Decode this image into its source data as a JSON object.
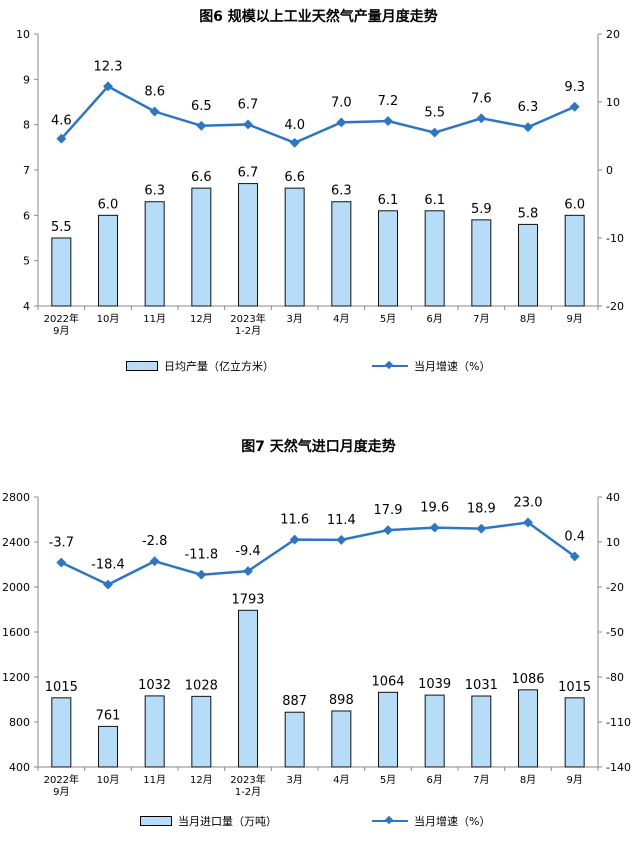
{
  "colors": {
    "bar_fill": "#b7dcf8",
    "bar_stroke": "#111111",
    "line": "#2e75c2",
    "axis": "#888888"
  },
  "chart_data": [
    {
      "type": "bar",
      "title": "图6  规模以上工业天然气产量月度走势",
      "categories": [
        "2022年\n9月",
        "10月",
        "11月",
        "12月",
        "2023年\n1-2月",
        "3月",
        "4月",
        "5月",
        "6月",
        "7月",
        "8月",
        "9月"
      ],
      "left_axis": {
        "min": 4,
        "max": 10,
        "step": 1
      },
      "right_axis": {
        "min": -20,
        "max": 20,
        "step": 10
      },
      "series": [
        {
          "name": "日均产量（亿立方米）",
          "kind": "bar",
          "axis": "left",
          "values": [
            5.5,
            6.0,
            6.3,
            6.6,
            6.7,
            6.6,
            6.3,
            6.1,
            6.1,
            5.9,
            5.8,
            6.0
          ],
          "labels": [
            "5.5",
            "6.0",
            "6.3",
            "6.6",
            "6.7",
            "6.6",
            "6.3",
            "6.1",
            "6.1",
            "5.9",
            "5.8",
            "6.0"
          ]
        },
        {
          "name": "当月增速（%）",
          "kind": "line",
          "axis": "right",
          "values": [
            4.6,
            12.3,
            8.6,
            6.5,
            6.7,
            4.0,
            7.0,
            7.2,
            5.5,
            7.6,
            6.3,
            9.3
          ],
          "labels": [
            "4.6",
            "12.3",
            "8.6",
            "6.5",
            "6.7",
            "4.0",
            "7.0",
            "7.2",
            "5.5",
            "7.6",
            "6.3",
            "9.3"
          ]
        }
      ]
    },
    {
      "type": "bar",
      "title": "图7  天然气进口月度走势",
      "categories": [
        "2022年\n9月",
        "10月",
        "11月",
        "12月",
        "2023年\n1-2月",
        "3月",
        "4月",
        "5月",
        "6月",
        "7月",
        "8月",
        "9月"
      ],
      "left_axis": {
        "min": 400,
        "max": 2800,
        "step": 400
      },
      "right_axis": {
        "min": -140,
        "max": 40,
        "step": 30,
        "ticks": [
          40,
          10,
          -20,
          -50,
          -80,
          -110,
          -140
        ]
      },
      "series": [
        {
          "name": "当月进口量（万吨）",
          "kind": "bar",
          "axis": "left",
          "values": [
            1015,
            761,
            1032,
            1028,
            1793,
            887,
            898,
            1064,
            1039,
            1031,
            1086,
            1015
          ],
          "labels": [
            "1015",
            "761",
            "1032",
            "1028",
            "1793",
            "887",
            "898",
            "1064",
            "1039",
            "1031",
            "1086",
            "1015"
          ]
        },
        {
          "name": "当月增速（%）",
          "kind": "line",
          "axis": "right",
          "values": [
            -3.7,
            -18.4,
            -2.8,
            -11.8,
            -9.4,
            11.6,
            11.4,
            17.9,
            19.6,
            18.9,
            23.0,
            0.4
          ],
          "labels": [
            "-3.7",
            "-18.4",
            "-2.8",
            "-11.8",
            "-9.4",
            "11.6",
            "11.4",
            "17.9",
            "19.6",
            "18.9",
            "23.0",
            "0.4"
          ]
        }
      ]
    }
  ]
}
